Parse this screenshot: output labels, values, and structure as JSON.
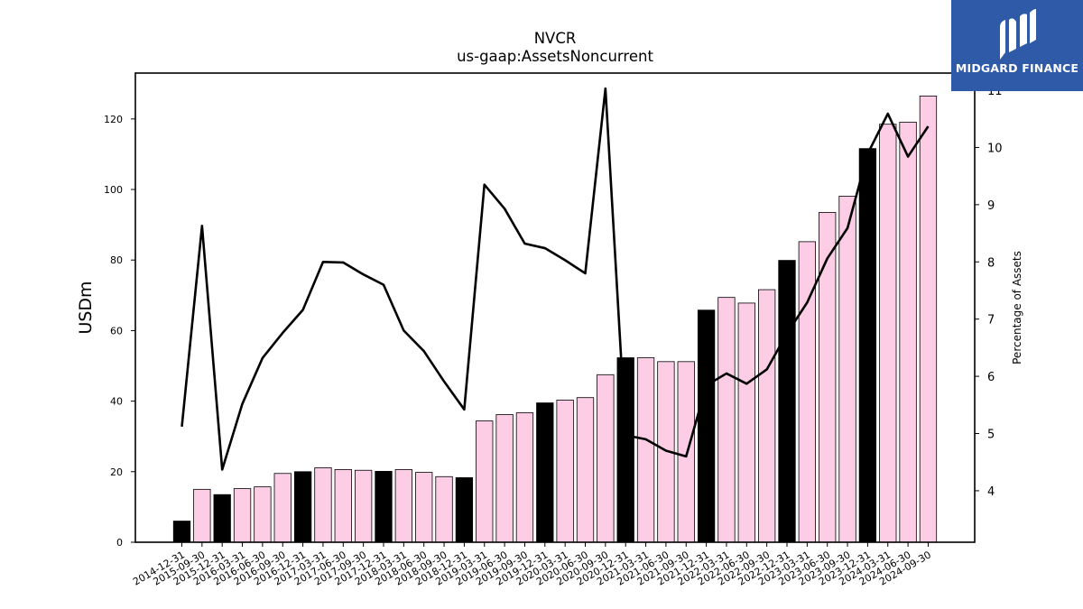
{
  "chart_data": {
    "type": "bar",
    "title": "NVCR",
    "subtitle": "us-gaap:AssetsNoncurrent",
    "ylabel": "USDm",
    "y2label": "Percentage of Assets",
    "ylim": [
      0,
      133
    ],
    "y2lim": [
      3.1,
      11.3
    ],
    "yticks": [
      0,
      20,
      40,
      60,
      80,
      100,
      120
    ],
    "y2ticks": [
      4,
      5,
      6,
      7,
      8,
      9,
      10,
      11
    ],
    "categories": [
      "2014-12-31",
      "2015-09-30",
      "2015-12-31",
      "2016-03-31",
      "2016-06-30",
      "2016-09-30",
      "2016-12-31",
      "2017-03-31",
      "2017-06-30",
      "2017-09-30",
      "2017-12-31",
      "2018-03-31",
      "2018-06-30",
      "2018-09-30",
      "2018-12-31",
      "2019-03-31",
      "2019-06-30",
      "2019-09-30",
      "2019-12-31",
      "2020-03-31",
      "2020-06-30",
      "2020-09-30",
      "2020-12-31",
      "2021-03-31",
      "2021-06-30",
      "2021-09-30",
      "2021-12-31",
      "2022-03-31",
      "2022-06-30",
      "2022-09-30",
      "2022-12-31",
      "2023-03-31",
      "2023-06-30",
      "2023-09-30",
      "2023-12-31",
      "2024-03-31",
      "2024-06-30",
      "2024-09-30"
    ],
    "series": [
      {
        "type": "bar",
        "values": [
          6.0,
          15.0,
          13.5,
          15.2,
          15.7,
          19.5,
          20.0,
          21.1,
          20.6,
          20.4,
          20.1,
          20.6,
          19.8,
          18.6,
          18.3,
          34.4,
          36.2,
          36.7,
          39.5,
          40.3,
          41.0,
          47.5,
          52.3,
          52.3,
          51.2,
          51.2,
          65.8,
          69.4,
          67.8,
          71.6,
          79.9,
          85.2,
          93.5,
          98.1,
          111.6,
          118.5,
          119.1,
          126.5
        ],
        "highlight_every_december": true
      },
      {
        "type": "line",
        "axis": "right",
        "values": [
          5.12,
          8.63,
          4.37,
          5.52,
          6.32,
          6.76,
          7.16,
          8.0,
          7.99,
          7.78,
          7.6,
          6.8,
          6.44,
          5.91,
          5.42,
          9.35,
          8.93,
          8.32,
          8.24,
          8.03,
          7.8,
          11.03,
          4.97,
          4.9,
          4.7,
          4.6,
          5.84,
          6.05,
          5.87,
          6.12,
          6.75,
          7.29,
          8.06,
          8.59,
          9.89,
          10.59,
          9.84,
          10.37
        ]
      }
    ],
    "colors": {
      "bar": "#fccde5",
      "bar_highlight": "#000000",
      "line": "#000000"
    },
    "grid": false,
    "legend": "none"
  },
  "branding": {
    "logo_text": "MIDGARD FINANCE",
    "logo_bg": "#2f5aa8"
  }
}
